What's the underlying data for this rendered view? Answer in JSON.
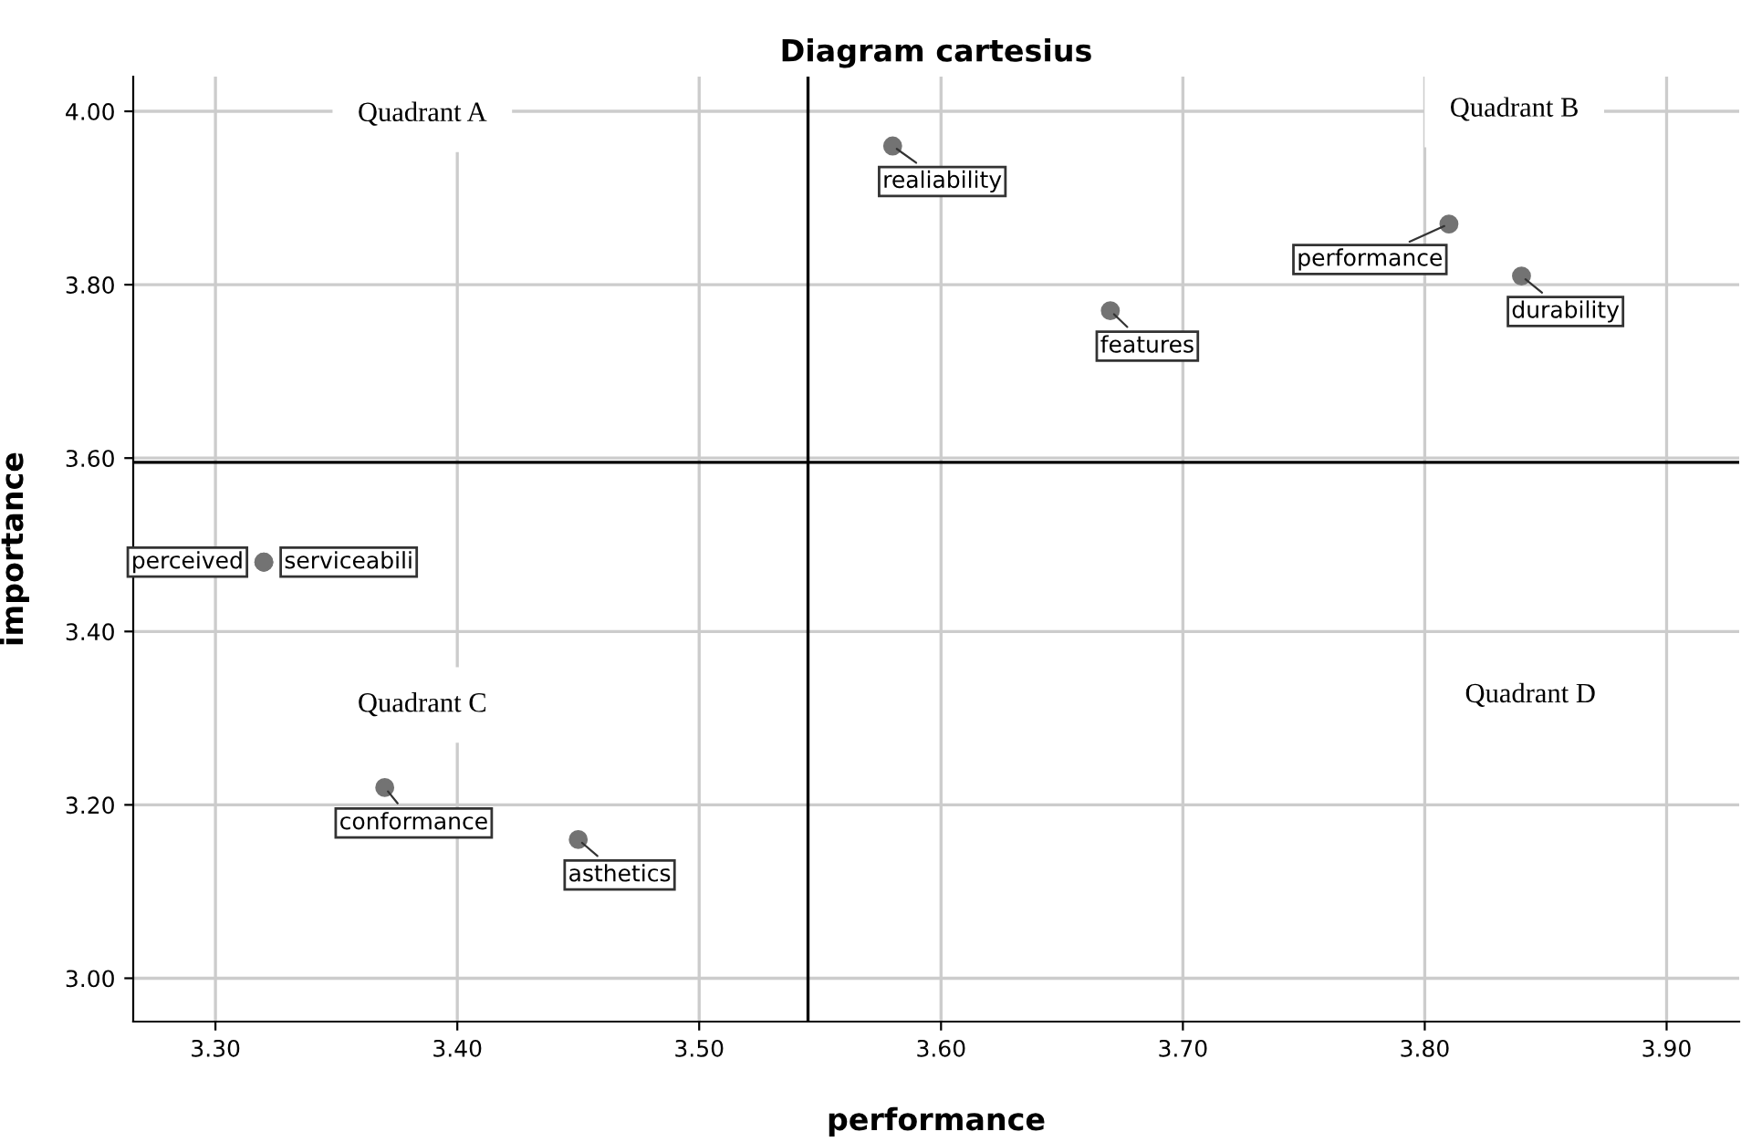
{
  "chart_data": {
    "type": "scatter",
    "title": "Diagram cartesius",
    "xlabel": "performance",
    "ylabel": "importance",
    "x": [
      3.58,
      3.81,
      3.84,
      3.67,
      3.32,
      3.32,
      3.37,
      3.45
    ],
    "values": [
      3.96,
      3.87,
      3.81,
      3.77,
      3.48,
      3.48,
      3.22,
      3.16
    ],
    "value_labels": [
      "realiability",
      "performance",
      "durability",
      "features",
      "perceived",
      "serviceabili",
      "conformance",
      "asthetics"
    ],
    "color": "#737373",
    "marker": "circle",
    "grid": true,
    "xlim": [
      3.266,
      3.93
    ],
    "ylim": [
      2.95,
      4.04
    ],
    "xticks": [
      {
        "value": 3.3,
        "label": "3.30"
      },
      {
        "value": 3.4,
        "label": "3.40"
      },
      {
        "value": 3.5,
        "label": "3.50"
      },
      {
        "value": 3.6,
        "label": "3.60"
      },
      {
        "value": 3.7,
        "label": "3.70"
      },
      {
        "value": 3.8,
        "label": "3.80"
      },
      {
        "value": 3.9,
        "label": "3.90"
      }
    ],
    "yticks": [
      {
        "value": 3.0,
        "label": "3.00"
      },
      {
        "value": 3.2,
        "label": "3.20"
      },
      {
        "value": 3.4,
        "label": "3.40"
      },
      {
        "value": 3.6,
        "label": "3.60"
      },
      {
        "value": 3.8,
        "label": "3.80"
      },
      {
        "value": 4.0,
        "label": "4.00"
      }
    ],
    "ref_lines": [
      {
        "axis": "x",
        "value": 3.545,
        "color": "#000000"
      },
      {
        "axis": "y",
        "value": 3.595,
        "color": "#000000"
      }
    ],
    "annotations": [
      "Quadrant A",
      "Quadrant B",
      "Quadrant C",
      "Quadrant D"
    ]
  }
}
